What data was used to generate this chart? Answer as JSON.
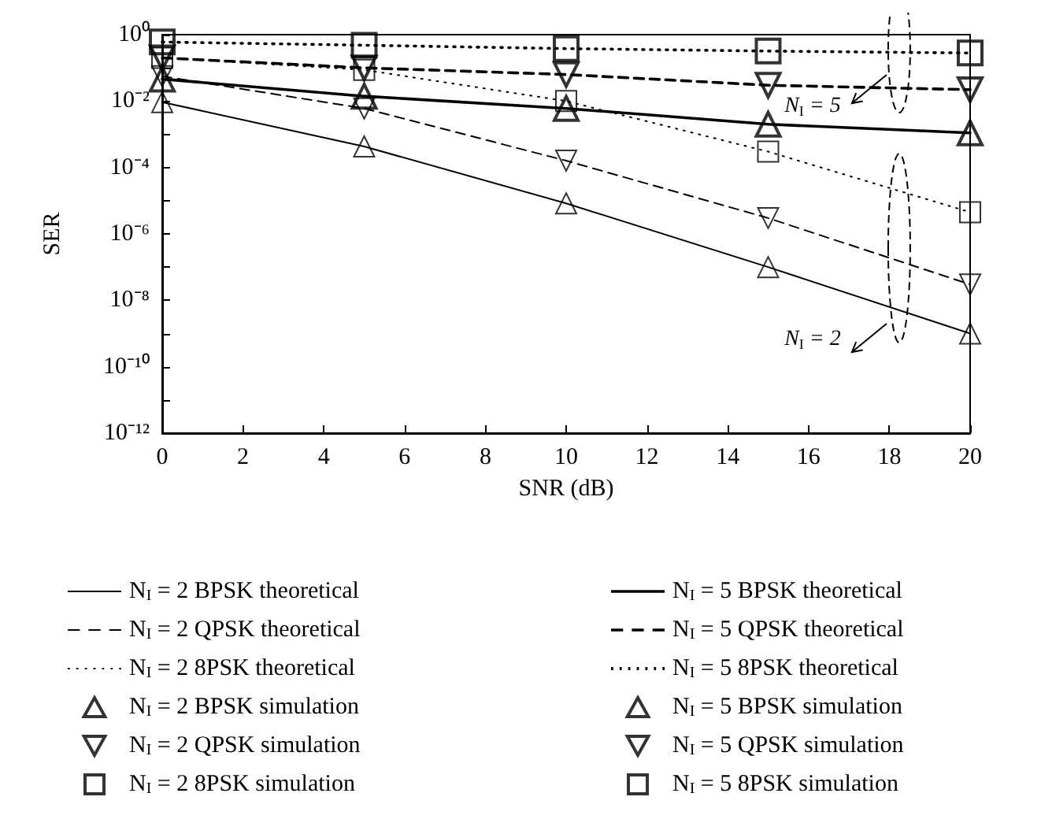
{
  "chart_data": {
    "type": "line",
    "xlabel": "SNR (dB)",
    "ylabel": "SER",
    "log": "y",
    "grid": false,
    "legend": "bottom",
    "x": [
      0,
      5,
      10,
      15,
      20
    ],
    "xlim": [
      0,
      20
    ],
    "xticks": [
      0,
      2,
      4,
      6,
      8,
      10,
      12,
      14,
      16,
      18,
      20
    ],
    "ylim": [
      1e-12,
      1
    ],
    "yticks": [
      {
        "value": 1e-12,
        "label": "10⁻¹²"
      },
      {
        "value": 1e-11,
        "label": null
      },
      {
        "value": 1e-10,
        "label": "10⁻¹⁰"
      },
      {
        "value": 1e-09,
        "label": null
      },
      {
        "value": 1e-08,
        "label": "10⁻⁸"
      },
      {
        "value": 1e-07,
        "label": null
      },
      {
        "value": 1e-06,
        "label": "10⁻⁶"
      },
      {
        "value": 1e-05,
        "label": null
      },
      {
        "value": 0.0001,
        "label": "10⁻⁴"
      },
      {
        "value": 0.001,
        "label": null
      },
      {
        "value": 0.01,
        "label": "10⁻²"
      },
      {
        "value": 0.1,
        "label": null
      },
      {
        "value": 1,
        "label": "10⁰"
      }
    ],
    "series": [
      {
        "name": "N$_{I}$ = 2 BPSK theoretical",
        "color": "#000000",
        "line_style": "solid",
        "marker": "none",
        "values": [
          0.0093,
          0.00043,
          8.3e-06,
          1e-07,
          1e-09
        ]
      },
      {
        "name": "N$_{I}$ = 2 QPSK theoretical",
        "color": "#000000",
        "line_style": "dashed",
        "marker": "none",
        "values": [
          0.056,
          0.006,
          0.00016,
          3e-06,
          3e-08
        ]
      },
      {
        "name": "N$_{I}$ = 2 8PSK theoretical",
        "color": "#000000",
        "line_style": "dotted",
        "marker": "none",
        "values": [
          0.2,
          0.087,
          0.01,
          0.0003,
          4.5e-06
        ]
      },
      {
        "name": "N$_{I}$ = 2 BPSK simulation",
        "type": "scatter",
        "color": "#000000",
        "marker": "triangle",
        "values": [
          0.0093,
          0.00043,
          8.3e-06,
          1e-07,
          1e-09
        ]
      },
      {
        "name": "N$_{I}$ = 2 QPSK simulation",
        "type": "scatter",
        "color": "#000000",
        "marker": "triangle-down",
        "values": [
          0.056,
          0.006,
          0.00016,
          3e-06,
          3e-08
        ]
      },
      {
        "name": "N$_{I}$ = 2 8PSK simulation",
        "type": "scatter",
        "color": "#000000",
        "marker": "square",
        "values": [
          0.2,
          0.087,
          0.01,
          0.0003,
          4.5e-06
        ]
      },
      {
        "name": "N$_{I}$ = 5 BPSK theoretical",
        "color": "#000000",
        "line_style": "solid",
        "marker": "none",
        "values": [
          0.046,
          0.014,
          0.006,
          0.002,
          0.0011
        ]
      },
      {
        "name": "N$_{I}$ = 5 QPSK theoretical",
        "color": "#000000",
        "line_style": "dashed",
        "marker": "none",
        "values": [
          0.2,
          0.1,
          0.063,
          0.03,
          0.022
        ]
      },
      {
        "name": "N$_{I}$ = 5 8PSK theoretical",
        "color": "#000000",
        "line_style": "dotted",
        "marker": "none",
        "values": [
          0.6,
          0.48,
          0.38,
          0.32,
          0.28
        ]
      },
      {
        "name": "N$_{I}$ = 5 BPSK simulation",
        "type": "scatter",
        "color": "#000000",
        "marker": "triangle",
        "values": [
          0.046,
          0.014,
          0.006,
          0.002,
          0.0011
        ]
      },
      {
        "name": "N$_{I}$ = 5 QPSK simulation",
        "type": "scatter",
        "color": "#000000",
        "marker": "triangle-down",
        "values": [
          0.2,
          0.1,
          0.063,
          0.03,
          0.022
        ]
      },
      {
        "name": "N$_{I}$ = 5 8PSK simulation",
        "type": "scatter",
        "color": "#000000",
        "marker": "square",
        "values": [
          0.6,
          0.48,
          0.38,
          0.32,
          0.28
        ]
      }
    ],
    "annotations": [
      "N$_{I}$ = 5",
      "N$_{I}$ = 2"
    ]
  }
}
